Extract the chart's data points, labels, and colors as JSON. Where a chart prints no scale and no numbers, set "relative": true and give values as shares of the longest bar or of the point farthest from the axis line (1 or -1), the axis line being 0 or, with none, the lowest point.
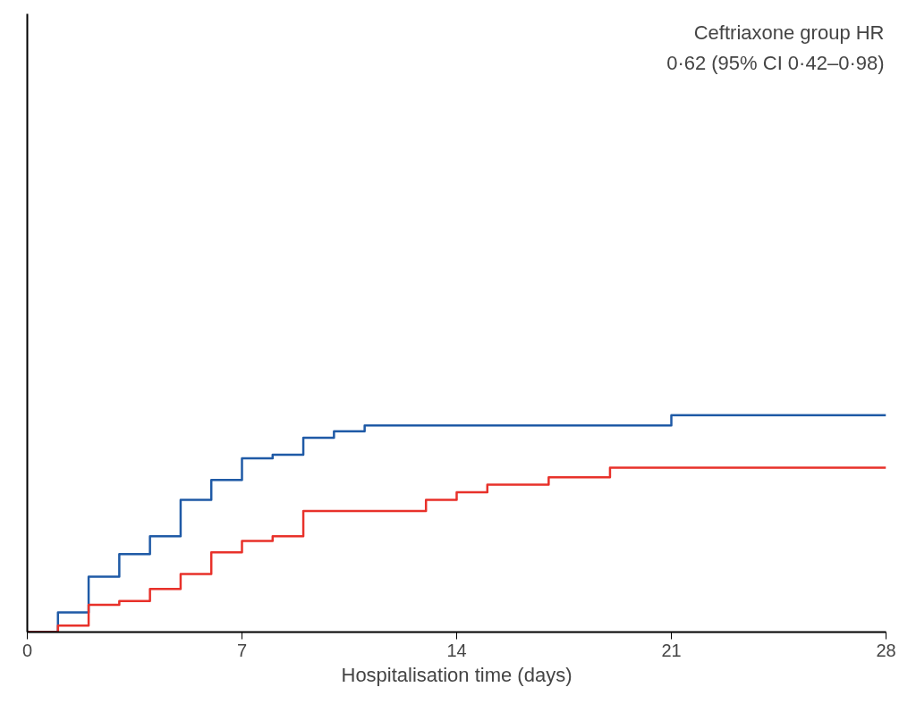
{
  "chart_data": {
    "type": "step",
    "relative": true,
    "xlabel": "Hospitalisation time (days)",
    "xlim": [
      0,
      28
    ],
    "xticks": [
      0,
      7,
      14,
      21,
      28
    ],
    "grid": false,
    "annotations": [
      "Ceftriaxone group HR",
      "0·62 (95% CI 0·42–0·98)"
    ],
    "series": [
      {
        "color": "#1f5aa6",
        "x": [
          0,
          1,
          2,
          3,
          4,
          5,
          6,
          7,
          8,
          9,
          10,
          11,
          21,
          28
        ],
        "values": [
          0,
          0.091,
          0.255,
          0.359,
          0.442,
          0.61,
          0.701,
          0.801,
          0.818,
          0.896,
          0.926,
          0.952,
          1.0,
          1.0
        ]
      },
      {
        "color": "#e8312a",
        "x": [
          0,
          1,
          2,
          3,
          4,
          5,
          6,
          7,
          8,
          9,
          13,
          14,
          15,
          17,
          19,
          28
        ],
        "values": [
          0,
          0.03,
          0.126,
          0.143,
          0.199,
          0.268,
          0.368,
          0.42,
          0.442,
          0.558,
          0.61,
          0.645,
          0.68,
          0.714,
          0.758,
          0.758
        ]
      }
    ]
  }
}
